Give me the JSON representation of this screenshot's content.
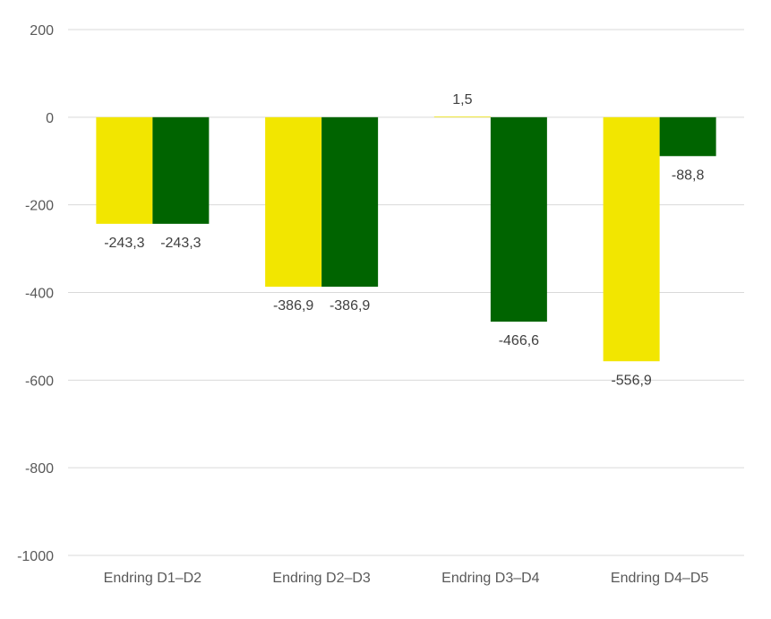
{
  "chart_data": {
    "type": "bar",
    "categories": [
      "Endring D1–D2",
      "Endring D2–D3",
      "Endring D3–D4",
      "Endring D4–D5"
    ],
    "series": [
      {
        "values": [
          -243.3,
          -386.9,
          1.5,
          -556.9
        ],
        "labels": [
          "-243,3",
          "-386,9",
          "1,5",
          "-556,9"
        ],
        "color": "#f2e600"
      },
      {
        "values": [
          -243.3,
          -386.9,
          -466.6,
          -88.8
        ],
        "labels": [
          "-243,3",
          "-386,9",
          "-466,6",
          "-88,8"
        ],
        "color": "#006400"
      }
    ],
    "ylim": [
      -1000,
      200
    ],
    "yticks": [
      200,
      0,
      -200,
      -400,
      -600,
      -800,
      -1000
    ],
    "ytick_labels": [
      "200",
      "0",
      "-200",
      "-400",
      "-600",
      "-800",
      "-1000"
    ],
    "grid": true,
    "legend": "none"
  }
}
